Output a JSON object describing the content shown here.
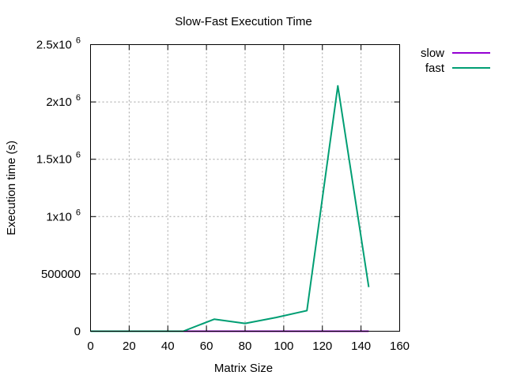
{
  "chart_data": {
    "type": "line",
    "title": "Slow-Fast Execution Time",
    "xlabel": "Matrix Size",
    "ylabel": "Execution time (s)",
    "xlim": [
      0,
      160
    ],
    "ylim": [
      0,
      2500000
    ],
    "grid": true,
    "legend_position": "outside-top-right",
    "x_ticks": [
      {
        "value": 0,
        "label": "0"
      },
      {
        "value": 20,
        "label": "20"
      },
      {
        "value": 40,
        "label": "40"
      },
      {
        "value": 60,
        "label": "60"
      },
      {
        "value": 80,
        "label": "80"
      },
      {
        "value": 100,
        "label": "100"
      },
      {
        "value": 120,
        "label": "120"
      },
      {
        "value": 140,
        "label": "140"
      },
      {
        "value": 160,
        "label": "160"
      }
    ],
    "y_ticks": [
      {
        "value": 0,
        "mantissa": "0",
        "exp": ""
      },
      {
        "value": 500000,
        "mantissa": "500000",
        "exp": ""
      },
      {
        "value": 1000000,
        "mantissa": "1x10",
        "exp": "6"
      },
      {
        "value": 1500000,
        "mantissa": "1.5x10",
        "exp": "6"
      },
      {
        "value": 2000000,
        "mantissa": "2x10",
        "exp": "6"
      },
      {
        "value": 2500000,
        "mantissa": "2.5x10",
        "exp": "6"
      }
    ],
    "series": [
      {
        "name": "slow",
        "color": "#9400d3",
        "x": [
          0,
          16,
          32,
          48,
          64,
          80,
          96,
          112,
          128,
          144
        ],
        "y": [
          0,
          0,
          0,
          0,
          0,
          0,
          0,
          0,
          0,
          0
        ]
      },
      {
        "name": "fast",
        "color": "#009e73",
        "x": [
          0,
          16,
          32,
          48,
          64,
          80,
          96,
          112,
          128,
          144
        ],
        "y": [
          0,
          0,
          0,
          0,
          105000,
          68000,
          120000,
          180000,
          2140000,
          385000
        ]
      }
    ]
  }
}
